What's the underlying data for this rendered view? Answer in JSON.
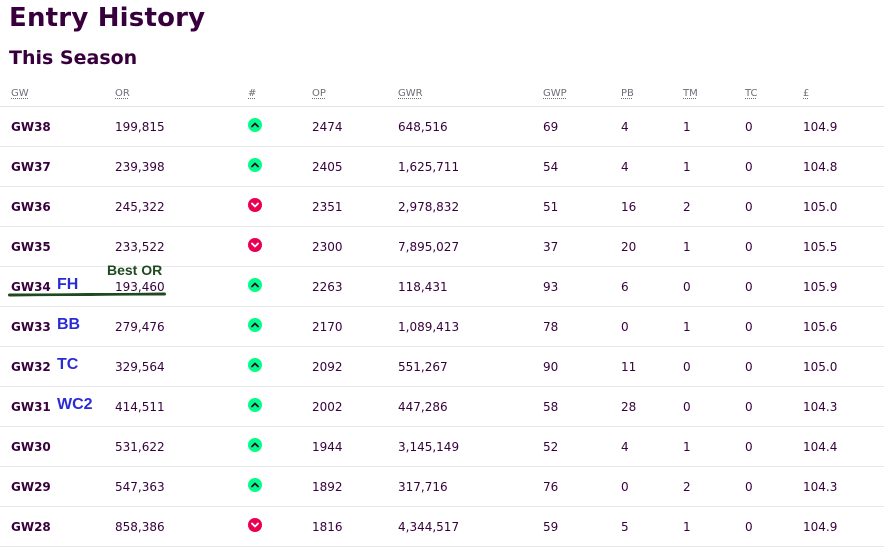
{
  "page": {
    "title": "Entry History",
    "section_title": "This Season"
  },
  "columns": {
    "gw": "GW",
    "or": "OR",
    "movement": "#",
    "op": "OP",
    "gwr": "GWR",
    "gwp": "GWP",
    "pb": "PB",
    "tm": "TM",
    "tc": "TC",
    "value": "£"
  },
  "colors": {
    "up": "#00ff87",
    "down": "#e90052",
    "text": "#37003c",
    "chip_annotation": "#2b2bd6",
    "best_or_annotation": "#1f4a1f"
  },
  "annotations": {
    "best_or": "Best OR"
  },
  "rows": [
    {
      "gw": "GW38",
      "chip": "",
      "or": "199,815",
      "movement": "up",
      "op": "2474",
      "gwr": "648,516",
      "gwp": "69",
      "pb": "4",
      "tm": "1",
      "tc": "0",
      "value": "104.9"
    },
    {
      "gw": "GW37",
      "chip": "",
      "or": "239,398",
      "movement": "up",
      "op": "2405",
      "gwr": "1,625,711",
      "gwp": "54",
      "pb": "4",
      "tm": "1",
      "tc": "0",
      "value": "104.8"
    },
    {
      "gw": "GW36",
      "chip": "",
      "or": "245,322",
      "movement": "down",
      "op": "2351",
      "gwr": "2,978,832",
      "gwp": "51",
      "pb": "16",
      "tm": "2",
      "tc": "0",
      "value": "105.0"
    },
    {
      "gw": "GW35",
      "chip": "",
      "or": "233,522",
      "movement": "down",
      "op": "2300",
      "gwr": "7,895,027",
      "gwp": "37",
      "pb": "20",
      "tm": "1",
      "tc": "0",
      "value": "105.5"
    },
    {
      "gw": "GW34",
      "chip": "FH",
      "or": "193,460",
      "movement": "up",
      "op": "2263",
      "gwr": "118,431",
      "gwp": "93",
      "pb": "6",
      "tm": "0",
      "tc": "0",
      "value": "105.9"
    },
    {
      "gw": "GW33",
      "chip": "BB",
      "or": "279,476",
      "movement": "up",
      "op": "2170",
      "gwr": "1,089,413",
      "gwp": "78",
      "pb": "0",
      "tm": "1",
      "tc": "0",
      "value": "105.6"
    },
    {
      "gw": "GW32",
      "chip": "TC",
      "or": "329,564",
      "movement": "up",
      "op": "2092",
      "gwr": "551,267",
      "gwp": "90",
      "pb": "11",
      "tm": "0",
      "tc": "0",
      "value": "105.0"
    },
    {
      "gw": "GW31",
      "chip": "WC2",
      "or": "414,511",
      "movement": "up",
      "op": "2002",
      "gwr": "447,286",
      "gwp": "58",
      "pb": "28",
      "tm": "0",
      "tc": "0",
      "value": "104.3"
    },
    {
      "gw": "GW30",
      "chip": "",
      "or": "531,622",
      "movement": "up",
      "op": "1944",
      "gwr": "3,145,149",
      "gwp": "52",
      "pb": "4",
      "tm": "1",
      "tc": "0",
      "value": "104.4"
    },
    {
      "gw": "GW29",
      "chip": "",
      "or": "547,363",
      "movement": "up",
      "op": "1892",
      "gwr": "317,716",
      "gwp": "76",
      "pb": "0",
      "tm": "2",
      "tc": "0",
      "value": "104.3"
    },
    {
      "gw": "GW28",
      "chip": "",
      "or": "858,386",
      "movement": "down",
      "op": "1816",
      "gwr": "4,344,517",
      "gwp": "59",
      "pb": "5",
      "tm": "1",
      "tc": "0",
      "value": "104.9"
    }
  ]
}
